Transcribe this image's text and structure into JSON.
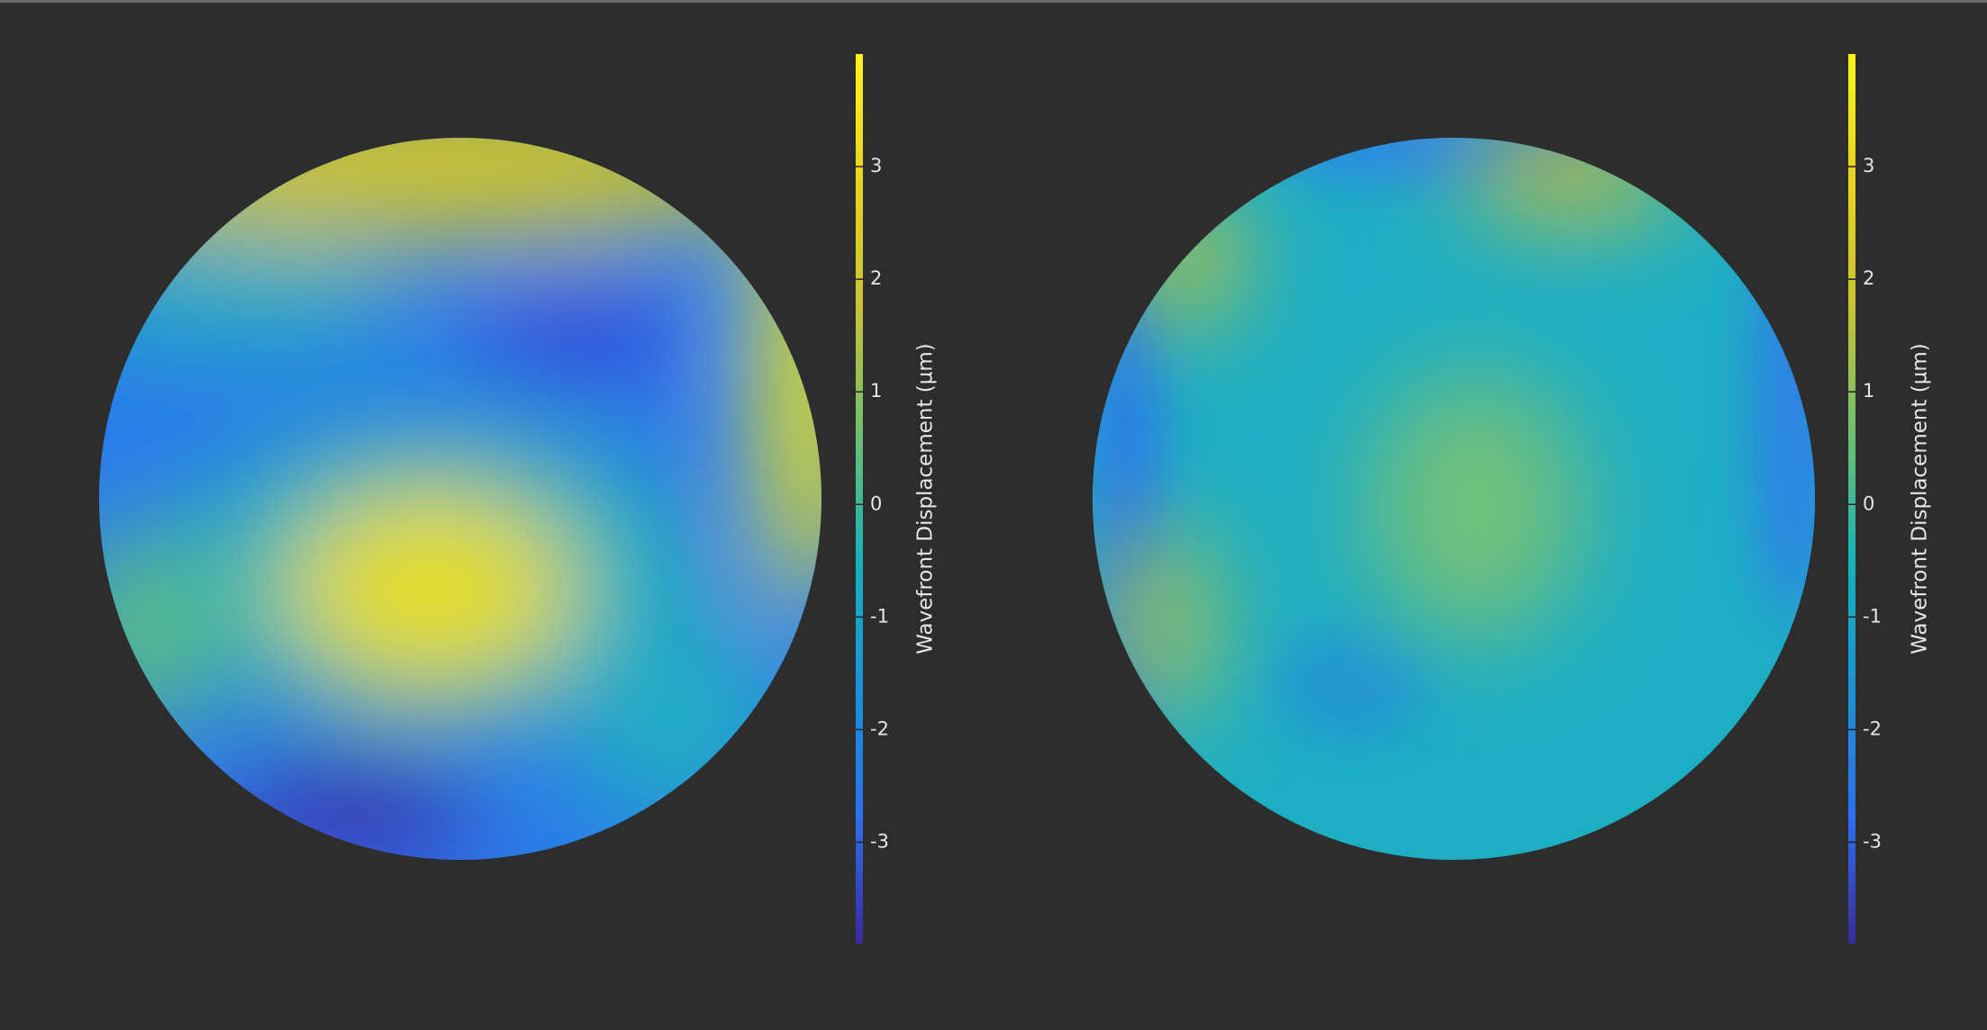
{
  "chart_data": [
    {
      "type": "colorbar",
      "ylabel": "Wavefront Displacement (µm)",
      "ylim": [
        -3.9,
        4.0
      ],
      "yticks": [
        -3,
        -2,
        -1,
        0,
        1,
        2,
        3
      ],
      "colormap": [
        "#3a2a9e",
        "#2c6ff0",
        "#1a92d6",
        "#14b2bc",
        "#6cc070",
        "#c8c234",
        "#e6d41e",
        "#f9f518"
      ]
    },
    {
      "type": "colorbar",
      "ylabel": "Wavefront Displacement (µm)",
      "ylim": [
        -3.9,
        4.0
      ],
      "yticks": [
        -3,
        -2,
        -1,
        0,
        1,
        2,
        3
      ],
      "colormap": [
        "#3a2a9e",
        "#2c6ff0",
        "#1a92d6",
        "#14b2bc",
        "#6cc070",
        "#c8c234",
        "#e6d41e",
        "#f9f518"
      ]
    }
  ]
}
